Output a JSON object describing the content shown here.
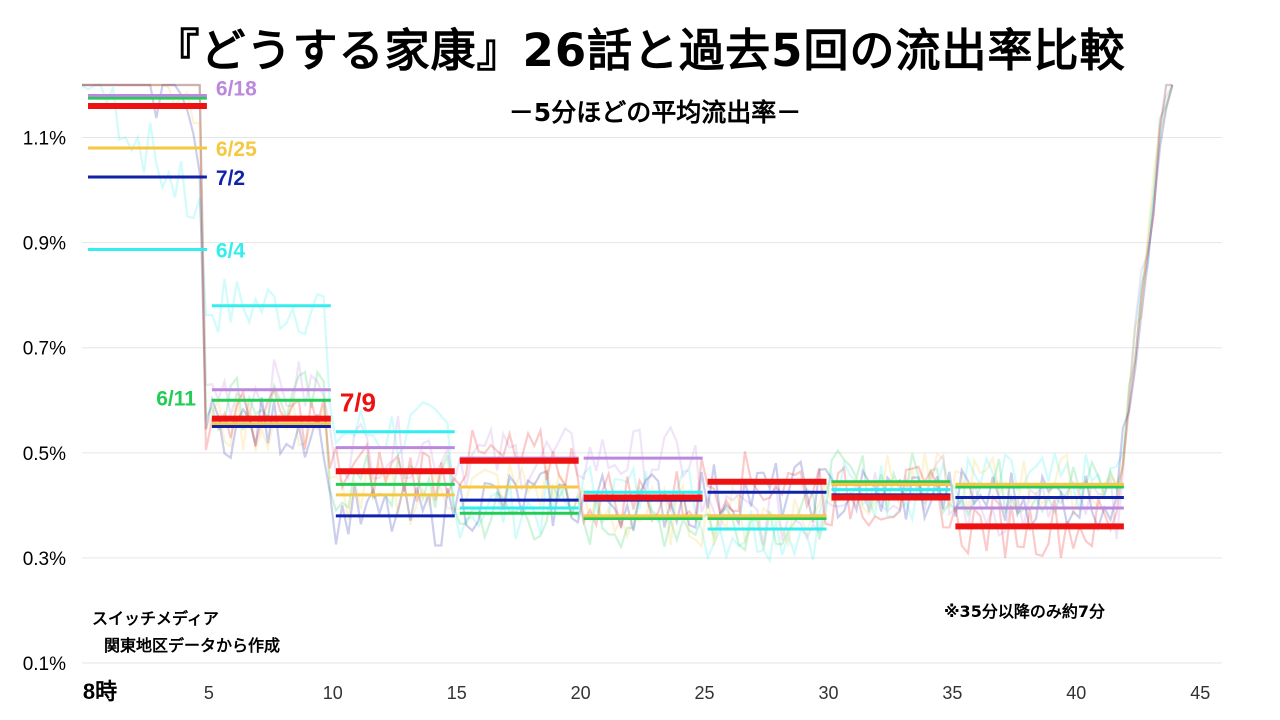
{
  "title": "『どうする家康』26話と過去5回の流出率比較",
  "subtitle": "－5分ほどの平均流出率－",
  "notes": {
    "credit_line1": "スイッチメディア",
    "credit_line2": "関東地区データから作成",
    "footnote": "※35分以降のみ約7分"
  },
  "chart_data": {
    "type": "line",
    "title": "『どうする家康』26話と過去5回の流出率比較",
    "subtitle": "－5分ほどの平均流出率－",
    "xlabel": "",
    "ylabel": "",
    "x_tick_labels": [
      "8時",
      "5",
      "10",
      "15",
      "20",
      "25",
      "30",
      "35",
      "40",
      "45"
    ],
    "x_ticks": [
      0,
      5,
      10,
      15,
      20,
      25,
      30,
      35,
      40,
      45
    ],
    "y_tick_labels": [
      "0.1%",
      "0.3%",
      "0.5%",
      "0.7%",
      "0.9%",
      "1.1%"
    ],
    "y_ticks": [
      0.1,
      0.3,
      0.5,
      0.7,
      0.9,
      1.1
    ],
    "xlim": [
      0,
      46
    ],
    "ylim": [
      0.1,
      1.2
    ],
    "grid": "horizontal",
    "segment_breaks": [
      0,
      5,
      10,
      15,
      20,
      25,
      30,
      35,
      42
    ],
    "series": [
      {
        "name": "6/4",
        "color": "#33eeee",
        "averages": [
          0.887,
          0.78,
          0.54,
          0.395,
          0.425,
          0.355,
          0.43,
          0.44
        ]
      },
      {
        "name": "6/11",
        "color": "#22cc55",
        "averages": [
          1.175,
          0.6,
          0.44,
          0.385,
          0.375,
          0.375,
          0.445,
          0.435
        ]
      },
      {
        "name": "6/18",
        "color": "#bb88dd",
        "averages": [
          1.18,
          0.62,
          0.51,
          0.49,
          0.49,
          0.38,
          0.44,
          0.395
        ]
      },
      {
        "name": "6/25",
        "color": "#f5c842",
        "averages": [
          1.08,
          0.555,
          0.42,
          0.435,
          0.38,
          0.38,
          0.44,
          0.44
        ]
      },
      {
        "name": "7/2",
        "color": "#1122aa",
        "averages": [
          1.025,
          0.55,
          0.38,
          0.41,
          0.41,
          0.425,
          0.42,
          0.415
        ]
      },
      {
        "name": "7/9",
        "color": "#ee1111",
        "averages": [
          1.16,
          0.565,
          0.465,
          0.485,
          0.415,
          0.445,
          0.415,
          0.36
        ]
      }
    ]
  }
}
